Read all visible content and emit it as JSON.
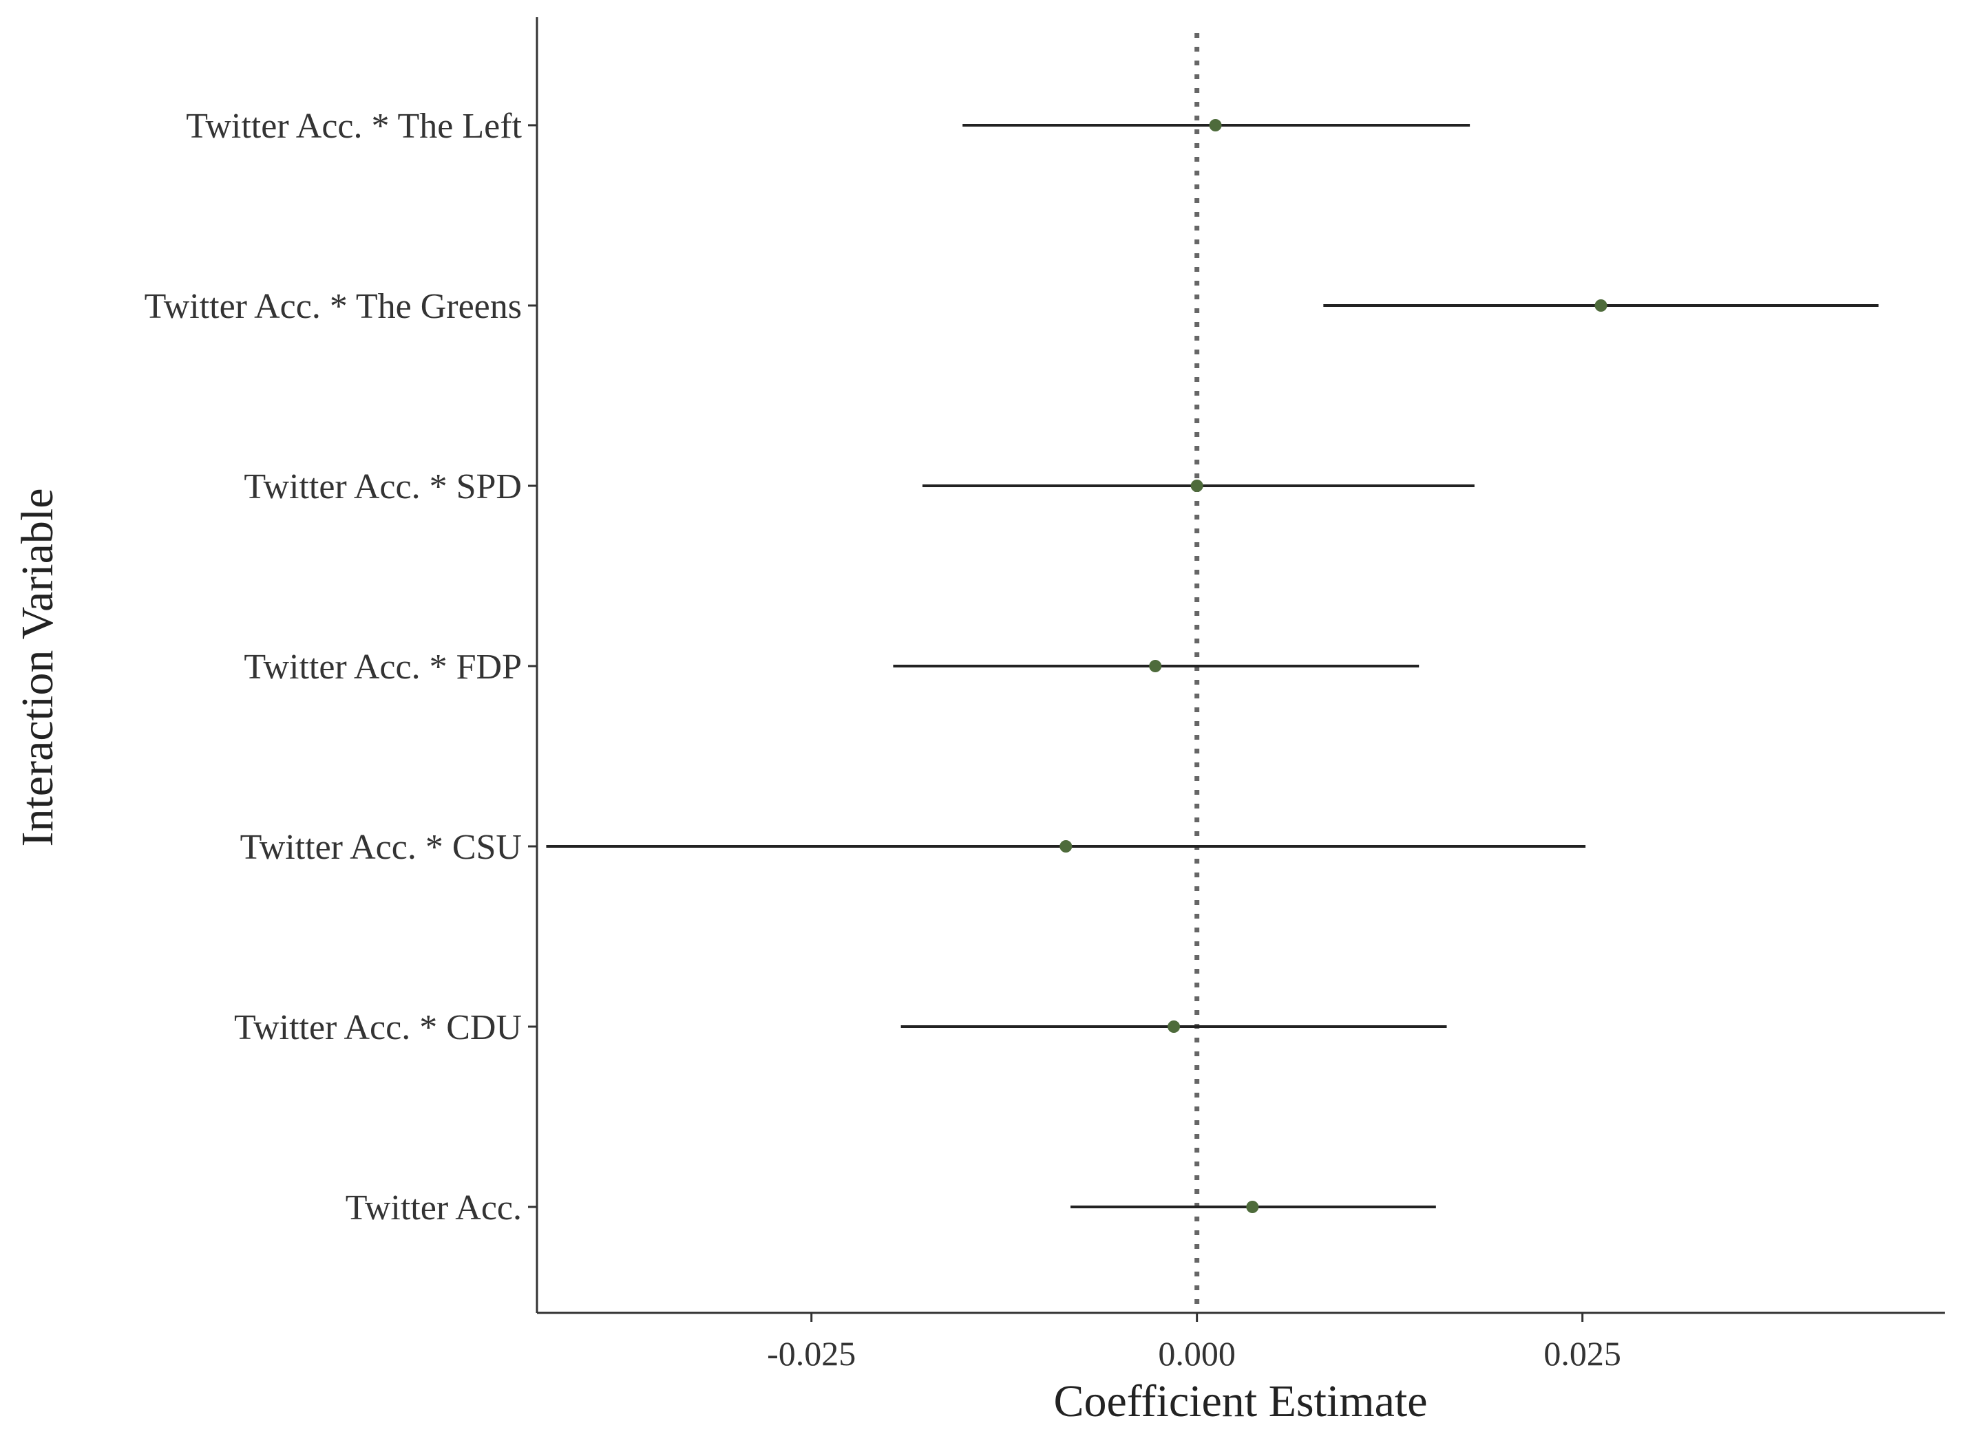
{
  "chart_data": {
    "type": "forest",
    "xlabel": "Coefficient Estimate",
    "ylabel": "Interaction Variable",
    "xlim": [
      -0.0428,
      0.0485
    ],
    "x_ticks": [
      -0.025,
      0.0,
      0.025
    ],
    "x_tick_labels": [
      "-0.025",
      "0.000",
      "0.025"
    ],
    "reference_line": {
      "x": 0,
      "style": "dotted",
      "color": "#666666"
    },
    "grid": false,
    "point_color": "#4e6b3b",
    "interval_color": "#222222",
    "rows": [
      {
        "label": "Twitter Acc. * The Left",
        "estimate": 0.0012,
        "lower": -0.0152,
        "upper": 0.0177
      },
      {
        "label": "Twitter Acc. * The Greens",
        "estimate": 0.0262,
        "lower": 0.0082,
        "upper": 0.0442
      },
      {
        "label": "Twitter Acc. * SPD",
        "estimate": 0.0,
        "lower": -0.0178,
        "upper": 0.018
      },
      {
        "label": "Twitter Acc. * FDP",
        "estimate": -0.0027,
        "lower": -0.0197,
        "upper": 0.0144
      },
      {
        "label": "Twitter Acc. * CSU",
        "estimate": -0.0085,
        "lower": -0.0422,
        "upper": 0.0252
      },
      {
        "label": "Twitter Acc. * CDU",
        "estimate": -0.0015,
        "lower": -0.0192,
        "upper": 0.0162
      },
      {
        "label": "Twitter Acc.",
        "estimate": 0.0036,
        "lower": -0.0082,
        "upper": 0.0155
      }
    ]
  }
}
